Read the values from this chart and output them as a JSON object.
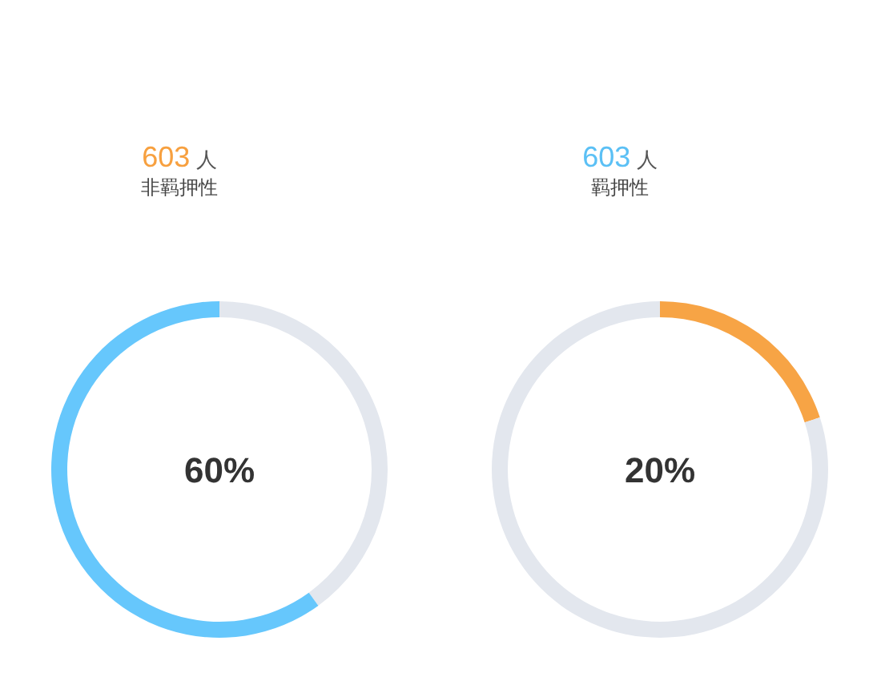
{
  "chart_data": [
    {
      "type": "donut",
      "title": "603 人",
      "subtitle": "非羁押性",
      "categories": [
        null,
        null
      ],
      "values": [
        40,
        60
      ],
      "colors": [
        "#e3e7ee",
        "#66c7fc"
      ],
      "annotations": [
        "60%"
      ]
    },
    {
      "type": "donut",
      "title": "603 人",
      "subtitle": "羁押性",
      "categories": [
        null,
        null
      ],
      "values": [
        20,
        80
      ],
      "colors": [
        "#f7a445",
        "#e3e7ee"
      ],
      "annotations": [
        "20%"
      ]
    }
  ]
}
